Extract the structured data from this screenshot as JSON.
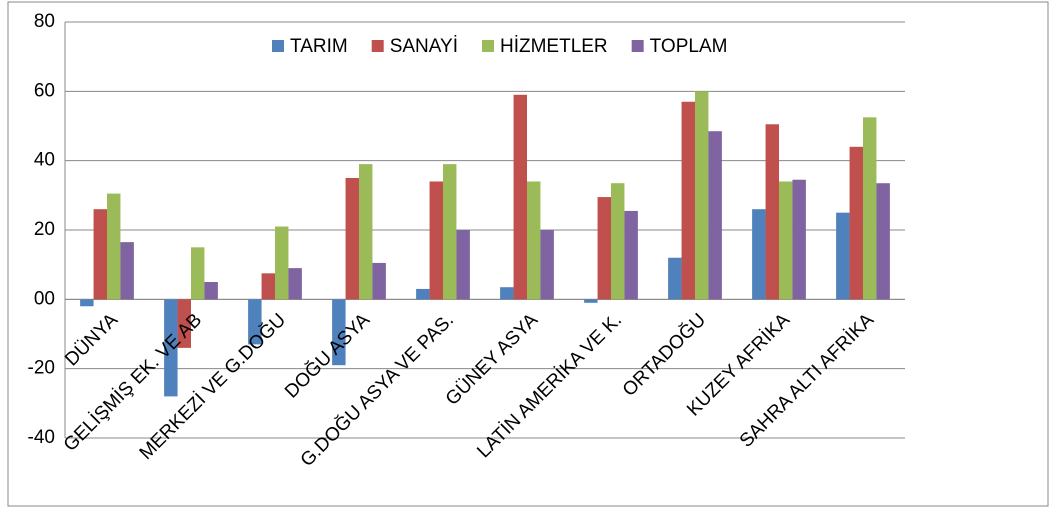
{
  "chart_data": {
    "type": "bar",
    "categories": [
      "DÜNYA",
      "GELİŞMİŞ EK. VE AB",
      "MERKEZİ VE G.DOĞU",
      "DOĞU ASYA",
      "G.DOĞU ASYA VE PAS.",
      "GÜNEY ASYA",
      "LATİN AMERİKA VE K.",
      "ORTADOĞU",
      "KUZEY AFRİKA",
      "SAHRA ALTI AFRİKA"
    ],
    "series": [
      {
        "name": "TARIM",
        "color": "#4f81bd",
        "values": [
          -2,
          -28,
          -13,
          -19,
          3,
          3.5,
          -1,
          12,
          26,
          25
        ]
      },
      {
        "name": "SANAYİ",
        "color": "#c0504d",
        "values": [
          26,
          -14,
          7.5,
          35,
          34,
          59,
          29.5,
          57,
          50.5,
          44
        ]
      },
      {
        "name": "HİZMETLER",
        "color": "#9bbb59",
        "values": [
          30.5,
          15,
          21,
          39,
          39,
          34,
          33.5,
          60,
          34,
          52.5
        ]
      },
      {
        "name": "TOPLAM",
        "color": "#8064a2",
        "values": [
          16.5,
          5,
          9,
          10.5,
          20,
          20,
          25.5,
          48.5,
          34.5,
          33.5
        ]
      }
    ],
    "ylim": [
      -40,
      80
    ],
    "yticks": [
      -40,
      -20,
      {
        "value": 0,
        "label": "00"
      },
      20,
      40,
      60,
      80
    ],
    "grid": true,
    "legend": "top"
  }
}
